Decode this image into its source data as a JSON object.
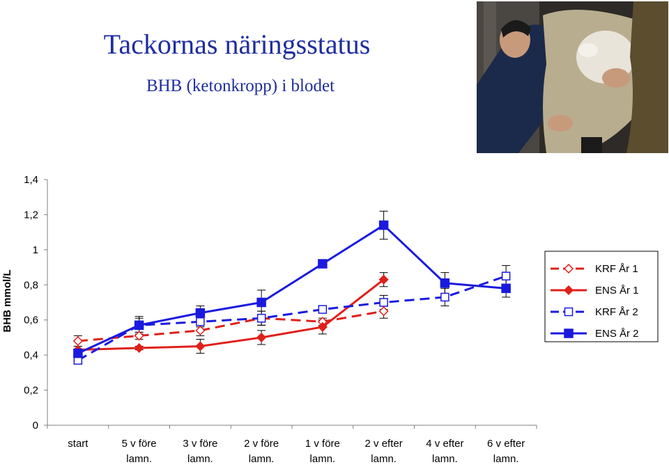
{
  "slide": {
    "title": "Tackornas näringsstatus",
    "subtitle": "BHB (ketonkropp) i blodet"
  },
  "chart_data": {
    "type": "line",
    "ylabel": "BHB mmol/L",
    "xlabel": "",
    "ylim": [
      0,
      1.4
    ],
    "yticks": [
      "0",
      "0,2",
      "0,4",
      "0,6",
      "0,8",
      "1",
      "1,2",
      "1,4"
    ],
    "ytick_values": [
      0,
      0.2,
      0.4,
      0.6,
      0.8,
      1.0,
      1.2,
      1.4
    ],
    "categories": [
      [
        "start"
      ],
      [
        "5 v före",
        "lamn."
      ],
      [
        "3 v före",
        "lamn."
      ],
      [
        "2 v före",
        "lamn."
      ],
      [
        "1 v före",
        "lamn."
      ],
      [
        "2 v efter",
        "lamn."
      ],
      [
        "4 v efter",
        "lamn."
      ],
      [
        "6 v efter",
        "lamn."
      ]
    ],
    "grid": false,
    "legend_position": "right",
    "series": [
      {
        "name": "KRF År 1",
        "color": "#e0201b",
        "dash": true,
        "marker": "diamond-open",
        "values": [
          0.48,
          0.51,
          0.54,
          0.61,
          0.59,
          0.65,
          null,
          null
        ],
        "errors": [
          0.03,
          0.02,
          0.03,
          0.04,
          0.02,
          0.04,
          null,
          null
        ]
      },
      {
        "name": "ENS År 1",
        "color": "#e0201b",
        "dash": false,
        "marker": "diamond-filled",
        "values": [
          0.43,
          0.44,
          0.45,
          0.5,
          0.56,
          0.83,
          null,
          null
        ],
        "errors": [
          0.02,
          0.01,
          0.04,
          0.04,
          0.04,
          0.04,
          null,
          null
        ]
      },
      {
        "name": "KRF År 2",
        "color": "#1a1adf",
        "dash": true,
        "marker": "square-open",
        "values": [
          0.37,
          0.57,
          0.59,
          0.61,
          0.66,
          0.7,
          0.73,
          0.85
        ],
        "errors": [
          0.02,
          0.04,
          0.03,
          0.04,
          0.02,
          0.04,
          0.05,
          0.06
        ]
      },
      {
        "name": "ENS År 2",
        "color": "#1a1adf",
        "dash": false,
        "marker": "square-filled",
        "values": [
          0.41,
          0.57,
          0.64,
          0.7,
          0.92,
          1.14,
          0.81,
          0.78
        ],
        "errors": [
          0.04,
          0.05,
          0.04,
          0.07,
          0.02,
          0.08,
          0.06,
          0.05
        ]
      }
    ]
  }
}
